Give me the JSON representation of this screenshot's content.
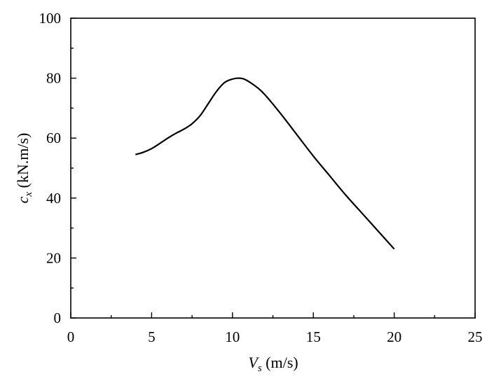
{
  "chart_data": {
    "type": "line",
    "title": "",
    "xlabel": {
      "symbol": "V",
      "subscript": "s",
      "unit": " (m/s)"
    },
    "ylabel": {
      "symbol": "c",
      "subscript": "x",
      "unit": " (kN.m/s)"
    },
    "xlim": [
      0,
      25
    ],
    "ylim": [
      0,
      100
    ],
    "xticks": [
      0,
      5,
      10,
      15,
      20,
      25
    ],
    "xtick_labels": [
      "0",
      "5",
      "10",
      "15",
      "20",
      "25"
    ],
    "yticks": [
      0,
      20,
      40,
      60,
      80,
      100
    ],
    "ytick_labels": [
      "0",
      "20",
      "40",
      "60",
      "80",
      "100"
    ],
    "grid": false,
    "legend": "none",
    "line_color": "#000000",
    "series": [
      {
        "x": [
          4.0,
          4.5,
          5.0,
          5.5,
          6.0,
          6.5,
          7.0,
          7.5,
          8.0,
          8.5,
          9.0,
          9.5,
          10.0,
          10.4,
          10.8,
          11.5,
          12.0,
          13.0,
          14.0,
          15.0,
          16.0,
          17.0,
          18.0,
          19.0,
          20.0
        ],
        "values": [
          54.5,
          55.3,
          56.5,
          58.2,
          60.0,
          61.6,
          63.0,
          64.8,
          67.5,
          71.5,
          75.5,
          78.5,
          79.7,
          80.0,
          79.5,
          77.0,
          74.5,
          68.0,
          61.0,
          54.0,
          47.5,
          41.0,
          35.0,
          29.0,
          23.0
        ]
      }
    ]
  }
}
